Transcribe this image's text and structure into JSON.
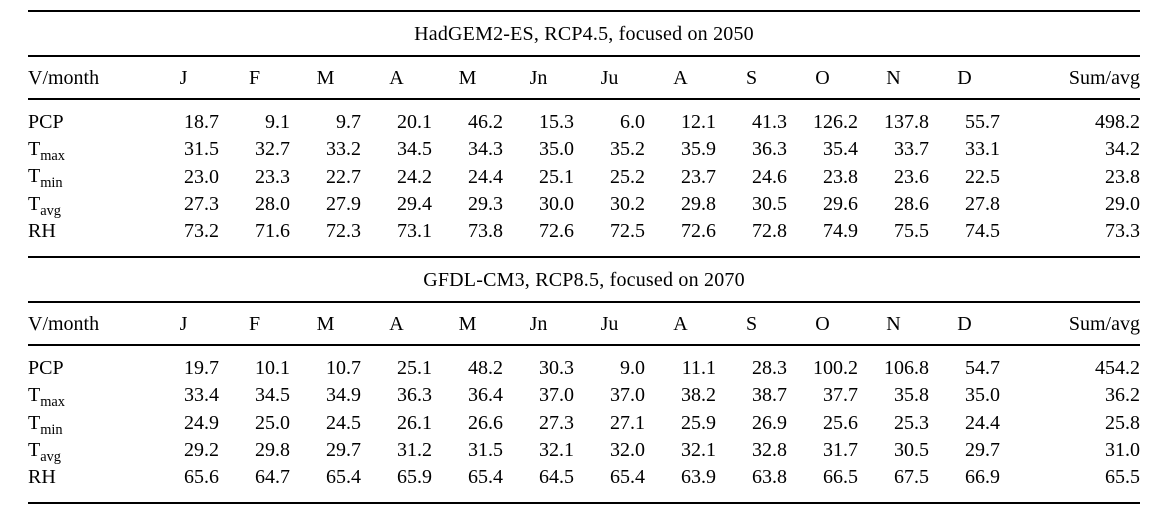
{
  "page": {
    "background": "#ffffff",
    "text_color": "#000000",
    "rule_color": "#000000"
  },
  "columns": [
    "V/month",
    "J",
    "F",
    "M",
    "A",
    "M",
    "Jn",
    "Ju",
    "A",
    "S",
    "O",
    "N",
    "D",
    "Sum/avg"
  ],
  "tables": [
    {
      "title": "HadGEM2-ES, RCP4.5, focused on 2050",
      "rows": [
        {
          "label": "PCP",
          "sub": "",
          "values": [
            "18.7",
            "9.1",
            "9.7",
            "20.1",
            "46.2",
            "15.3",
            "6.0",
            "12.1",
            "41.3",
            "126.2",
            "137.8",
            "55.7",
            "498.2"
          ]
        },
        {
          "label": "T",
          "sub": "max",
          "values": [
            "31.5",
            "32.7",
            "33.2",
            "34.5",
            "34.3",
            "35.0",
            "35.2",
            "35.9",
            "36.3",
            "35.4",
            "33.7",
            "33.1",
            "34.2"
          ]
        },
        {
          "label": "T",
          "sub": "min",
          "values": [
            "23.0",
            "23.3",
            "22.7",
            "24.2",
            "24.4",
            "25.1",
            "25.2",
            "23.7",
            "24.6",
            "23.8",
            "23.6",
            "22.5",
            "23.8"
          ]
        },
        {
          "label": "T",
          "sub": "avg",
          "values": [
            "27.3",
            "28.0",
            "27.9",
            "29.4",
            "29.3",
            "30.0",
            "30.2",
            "29.8",
            "30.5",
            "29.6",
            "28.6",
            "27.8",
            "29.0"
          ]
        },
        {
          "label": "RH",
          "sub": "",
          "values": [
            "73.2",
            "71.6",
            "72.3",
            "73.1",
            "73.8",
            "72.6",
            "72.5",
            "72.6",
            "72.8",
            "74.9",
            "75.5",
            "74.5",
            "73.3"
          ]
        }
      ]
    },
    {
      "title": "GFDL-CM3, RCP8.5, focused on 2070",
      "rows": [
        {
          "label": "PCP",
          "sub": "",
          "values": [
            "19.7",
            "10.1",
            "10.7",
            "25.1",
            "48.2",
            "30.3",
            "9.0",
            "11.1",
            "28.3",
            "100.2",
            "106.8",
            "54.7",
            "454.2"
          ]
        },
        {
          "label": "T",
          "sub": "max",
          "values": [
            "33.4",
            "34.5",
            "34.9",
            "36.3",
            "36.4",
            "37.0",
            "37.0",
            "38.2",
            "38.7",
            "37.7",
            "35.8",
            "35.0",
            "36.2"
          ]
        },
        {
          "label": "T",
          "sub": "min",
          "values": [
            "24.9",
            "25.0",
            "24.5",
            "26.1",
            "26.6",
            "27.3",
            "27.1",
            "25.9",
            "26.9",
            "25.6",
            "25.3",
            "24.4",
            "25.8"
          ]
        },
        {
          "label": "T",
          "sub": "avg",
          "values": [
            "29.2",
            "29.8",
            "29.7",
            "31.2",
            "31.5",
            "32.1",
            "32.0",
            "32.1",
            "32.8",
            "31.7",
            "30.5",
            "29.7",
            "31.0"
          ]
        },
        {
          "label": "RH",
          "sub": "",
          "values": [
            "65.6",
            "64.7",
            "65.4",
            "65.9",
            "65.4",
            "64.5",
            "65.4",
            "63.9",
            "63.8",
            "66.5",
            "67.5",
            "66.9",
            "65.5"
          ]
        }
      ]
    }
  ]
}
